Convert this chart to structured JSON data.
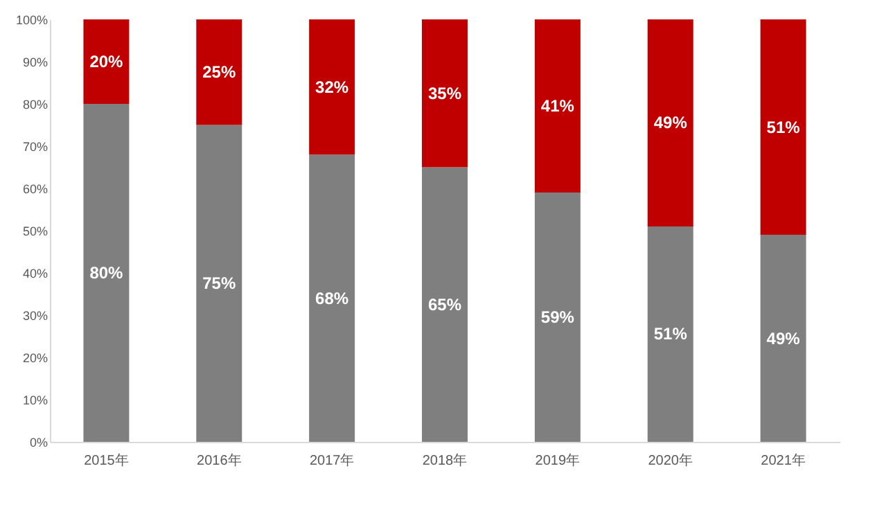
{
  "chart_data": {
    "type": "bar",
    "stacked": true,
    "categories": [
      "2015年",
      "2016年",
      "2017年",
      "2018年",
      "2019年",
      "2020年",
      "2021年"
    ],
    "series": [
      {
        "color": "#7f7f7f",
        "values": [
          80,
          75,
          68,
          65,
          59,
          51,
          49
        ],
        "value_labels": [
          "80%",
          "75%",
          "68%",
          "65%",
          "59%",
          "51%",
          "49%"
        ]
      },
      {
        "color": "#c00000",
        "values": [
          20,
          25,
          32,
          35,
          41,
          49,
          51
        ],
        "value_labels": [
          "20%",
          "25%",
          "32%",
          "35%",
          "41%",
          "49%",
          "51%"
        ]
      }
    ],
    "ylim": [
      0,
      100
    ],
    "yticks": [
      {
        "value": 0,
        "label": "0%"
      },
      {
        "value": 10,
        "label": "10%"
      },
      {
        "value": 20,
        "label": "20%"
      },
      {
        "value": 30,
        "label": "30%"
      },
      {
        "value": 40,
        "label": "40%"
      },
      {
        "value": 50,
        "label": "50%"
      },
      {
        "value": 60,
        "label": "60%"
      },
      {
        "value": 70,
        "label": "70%"
      },
      {
        "value": 80,
        "label": "80%"
      },
      {
        "value": 90,
        "label": "90%"
      },
      {
        "value": 100,
        "label": "100%"
      }
    ],
    "grid": false
  }
}
